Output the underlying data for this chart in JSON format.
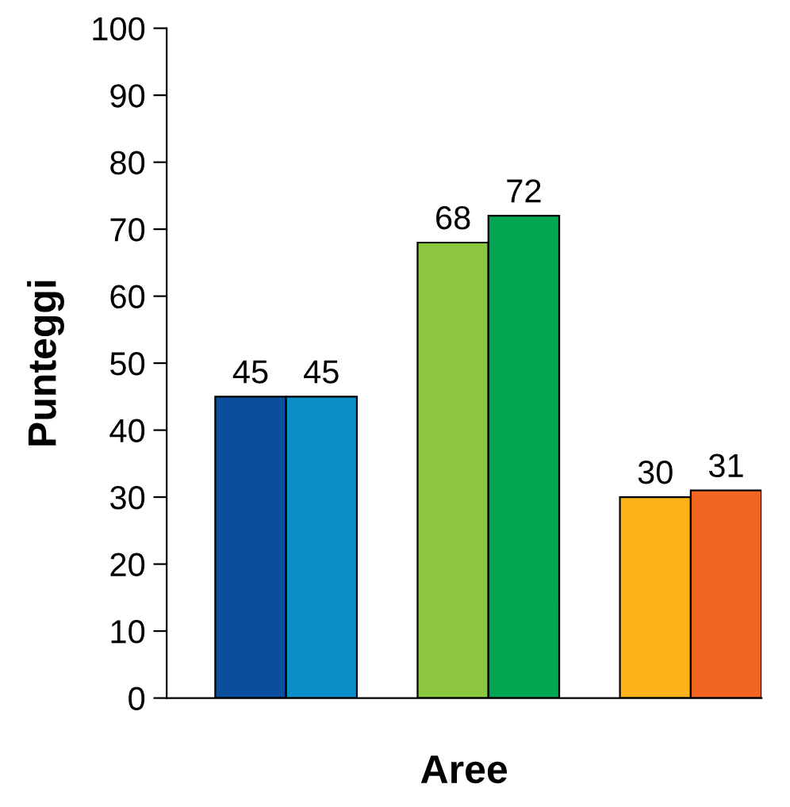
{
  "chart_data": {
    "type": "bar",
    "xlabel": "Aree",
    "ylabel": "Punteggi",
    "categories": [
      null,
      null,
      null
    ],
    "series": [
      {
        "colors": [
          "#0a4f9e",
          "#8dc63f",
          "#fbb117"
        ],
        "values": [
          45,
          68,
          30
        ]
      },
      {
        "colors": [
          "#0a8fc8",
          "#00a651",
          "#f26522"
        ],
        "values": [
          45,
          72,
          31
        ]
      }
    ],
    "ylim": [
      0,
      100
    ],
    "yticks": [
      0,
      10,
      20,
      30,
      40,
      50,
      60,
      70,
      80,
      90,
      100
    ],
    "grid": false,
    "legend": false,
    "data_labels": true
  }
}
